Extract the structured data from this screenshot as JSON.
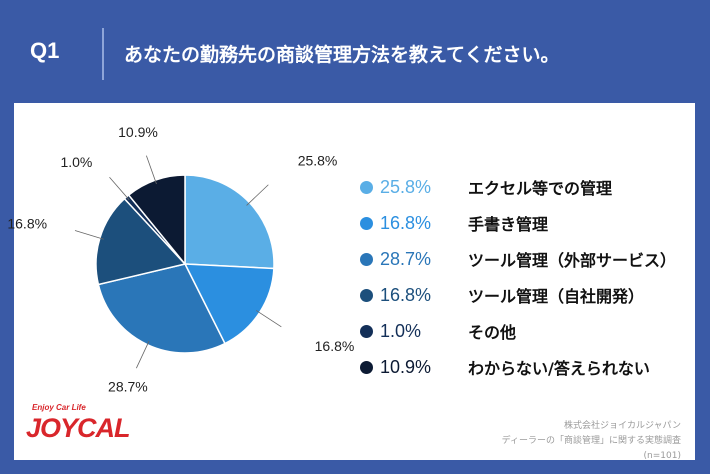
{
  "header": {
    "q_label": "Q1",
    "question": "あなたの勤務先の商談管理方法を教えてください。"
  },
  "chart_data": {
    "type": "pie",
    "categories": [
      "エクセル等での管理",
      "手書き管理",
      "ツール管理（外部サービス）",
      "ツール管理（自社開発）",
      "その他",
      "わからない/答えられない"
    ],
    "values": [
      25.8,
      16.8,
      28.7,
      16.8,
      1.0,
      10.9
    ],
    "labels": [
      "25.8%",
      "16.8%",
      "28.7%",
      "16.8%",
      "1.0%",
      "10.9%"
    ],
    "colors": [
      "#5aaee6",
      "#2b8fe0",
      "#2a76b8",
      "#1c4f7c",
      "#132f58",
      "#0c1a33"
    ],
    "start_angle_deg": 0,
    "direction": "clockwise"
  },
  "legend_text_colors": [
    "#5aaee6",
    "#2b8fe0",
    "#2a76b8",
    "#1c4f7c",
    "#132f58",
    "#0c1a33"
  ],
  "logo": {
    "tagline": "Enjoy Car Life",
    "name": "JOYCAL"
  },
  "source": {
    "line1": "株式会社ジョイカルジャパン",
    "line2": "ディーラーの「商談管理」に関する実態調査",
    "line3": "(n=101)"
  }
}
